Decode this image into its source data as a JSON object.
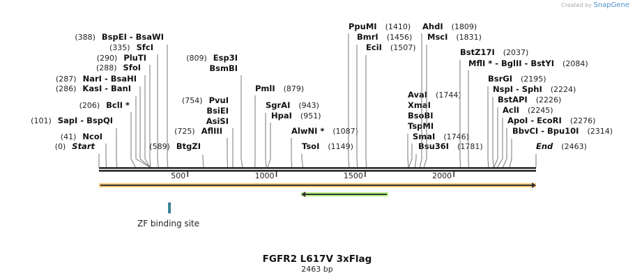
{
  "credit": {
    "prefix": "Created by",
    "brand": "SnapGene"
  },
  "title": "FGFR2 L617V 3xFlag",
  "length_label": "2463 bp",
  "length": 2463,
  "ticks": [
    500,
    1000,
    1500,
    2000
  ],
  "features": [
    {
      "name": "main-orf",
      "start": 1,
      "end": 2463,
      "direction": "forward",
      "color": "#f9c97a"
    },
    {
      "name": "reverse-feature",
      "start": 1140,
      "end": 1630,
      "direction": "reverse",
      "color": "#b7f08a"
    },
    {
      "name": "ZF binding site",
      "label": "ZF binding site",
      "start": 395,
      "end": 401,
      "color": "#2a8aa0"
    }
  ],
  "enzymes": [
    {
      "lines": [
        "Start"
      ],
      "pos": 0,
      "italic": true
    },
    {
      "lines": [
        "NcoI"
      ],
      "pos": 41
    },
    {
      "lines": [
        "SapI  - BspQI"
      ],
      "pos": 101
    },
    {
      "lines": [
        "BclI *"
      ],
      "pos": 206
    },
    {
      "lines": [
        "KasI  - BanI"
      ],
      "pos": 286
    },
    {
      "lines": [
        "NarI  - BsaHI"
      ],
      "pos": 287
    },
    {
      "lines": [
        "SfoI"
      ],
      "pos": 288
    },
    {
      "lines": [
        "PluTI"
      ],
      "pos": 290
    },
    {
      "lines": [
        "SfcI"
      ],
      "pos": 335
    },
    {
      "lines": [
        "BspEI  - BsaWI"
      ],
      "pos": 388
    },
    {
      "lines": [
        "BtgZI"
      ],
      "pos": 589
    },
    {
      "lines": [
        "AflIII"
      ],
      "pos": 725
    },
    {
      "lines": [
        "PvuI",
        "BsiEI",
        "AsiSI"
      ],
      "pos": 754
    },
    {
      "lines": [
        "Esp3I",
        "BsmBI"
      ],
      "pos": 809
    },
    {
      "lines": [
        "PmlI"
      ],
      "pos": 879
    },
    {
      "lines": [
        "SgrAI"
      ],
      "pos": 943
    },
    {
      "lines": [
        "HpaI"
      ],
      "pos": 951
    },
    {
      "lines": [
        "AlwNI *"
      ],
      "pos": 1087
    },
    {
      "lines": [
        "TsoI"
      ],
      "pos": 1149
    },
    {
      "lines": [
        "PpuMI"
      ],
      "pos": 1410
    },
    {
      "lines": [
        "BmrI"
      ],
      "pos": 1456
    },
    {
      "lines": [
        "EciI"
      ],
      "pos": 1507
    },
    {
      "lines": [
        "AvaI",
        "XmaI",
        "BsoBI",
        "TspMI"
      ],
      "pos": 1744
    },
    {
      "lines": [
        "SmaI"
      ],
      "pos": 1746
    },
    {
      "lines": [
        "Bsu36I"
      ],
      "pos": 1781
    },
    {
      "lines": [
        "AhdI"
      ],
      "pos": 1809
    },
    {
      "lines": [
        "MscI"
      ],
      "pos": 1831
    },
    {
      "lines": [
        "BstZ17I"
      ],
      "pos": 2037
    },
    {
      "lines": [
        "MflI * - BglII  - BstYI"
      ],
      "pos": 2084
    },
    {
      "lines": [
        "BsrGI"
      ],
      "pos": 2195
    },
    {
      "lines": [
        "NspI  - SphI"
      ],
      "pos": 2224
    },
    {
      "lines": [
        "BstAPI"
      ],
      "pos": 2226
    },
    {
      "lines": [
        "AclI"
      ],
      "pos": 2245
    },
    {
      "lines": [
        "ApoI  - EcoRI"
      ],
      "pos": 2276
    },
    {
      "lines": [
        "BbvCI  - Bpu10I"
      ],
      "pos": 2314
    },
    {
      "lines": [
        "End"
      ],
      "pos": 2463,
      "italic": true
    }
  ]
}
